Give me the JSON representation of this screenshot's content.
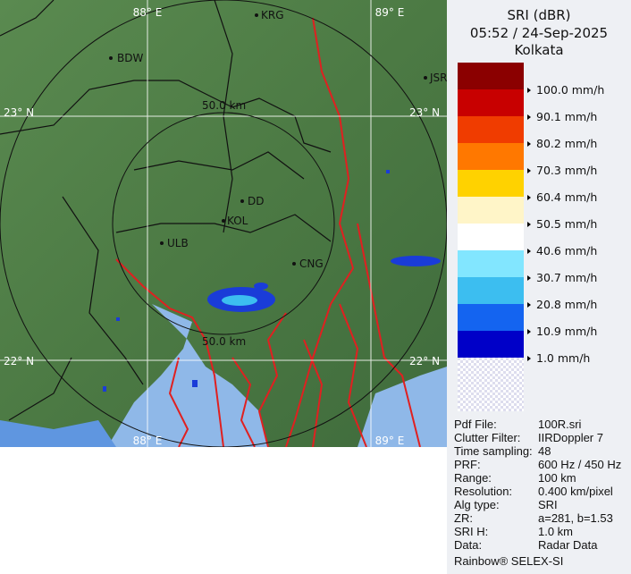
{
  "header": {
    "product": "SRI (dBR)",
    "datetime": "05:52 / 24-Sep-2025",
    "site": "Kolkata"
  },
  "legend": {
    "colors": [
      "#8b0000",
      "#c80000",
      "#f03c00",
      "#ff7800",
      "#ffd200",
      "#fff5c8",
      "#ffffff",
      "#82e6ff",
      "#3cbef0",
      "#1464f0",
      "#0000c8"
    ],
    "labels": [
      "100.0 mm/h",
      "90.1 mm/h",
      "80.2 mm/h",
      "70.3 mm/h",
      "60.4 mm/h",
      "50.5 mm/h",
      "40.6 mm/h",
      "30.7 mm/h",
      "20.8 mm/h",
      "10.9 mm/h",
      "1.0 mm/h"
    ]
  },
  "map": {
    "lon_labels": [
      "88° E",
      "89° E"
    ],
    "lat_labels": [
      "23° N",
      "22° N"
    ],
    "range_labels": [
      "50.0 km",
      "50.0 km"
    ],
    "cities": [
      {
        "name": "KRG"
      },
      {
        "name": "BDW"
      },
      {
        "name": "JSR"
      },
      {
        "name": "DD"
      },
      {
        "name": "KOL"
      },
      {
        "name": "ULB"
      },
      {
        "name": "CNG"
      }
    ],
    "colors": {
      "land": "#4f7d46",
      "water": "#8fb8e8",
      "rivers": "#e02020",
      "grid": "#ffffff",
      "rain": "#1a3cd8"
    }
  },
  "info": [
    {
      "key": "Pdf File:",
      "value": "100R.sri"
    },
    {
      "key": "Clutter Filter:",
      "value": "IIRDoppler 7"
    },
    {
      "key": "Time sampling:",
      "value": "48"
    },
    {
      "key": "PRF:",
      "value": "600 Hz / 450 Hz"
    },
    {
      "key": "Range:",
      "value": "100 km"
    },
    {
      "key": "Resolution:",
      "value": "0.400 km/pixel"
    },
    {
      "key": "Alg type:",
      "value": "SRI"
    },
    {
      "key": "ZR:",
      "value": "a=281, b=1.53"
    },
    {
      "key": "SRI H:",
      "value": "1.0 km"
    },
    {
      "key": "Data:",
      "value": "Radar Data"
    }
  ],
  "footer": "Rainbow® SELEX-SI"
}
